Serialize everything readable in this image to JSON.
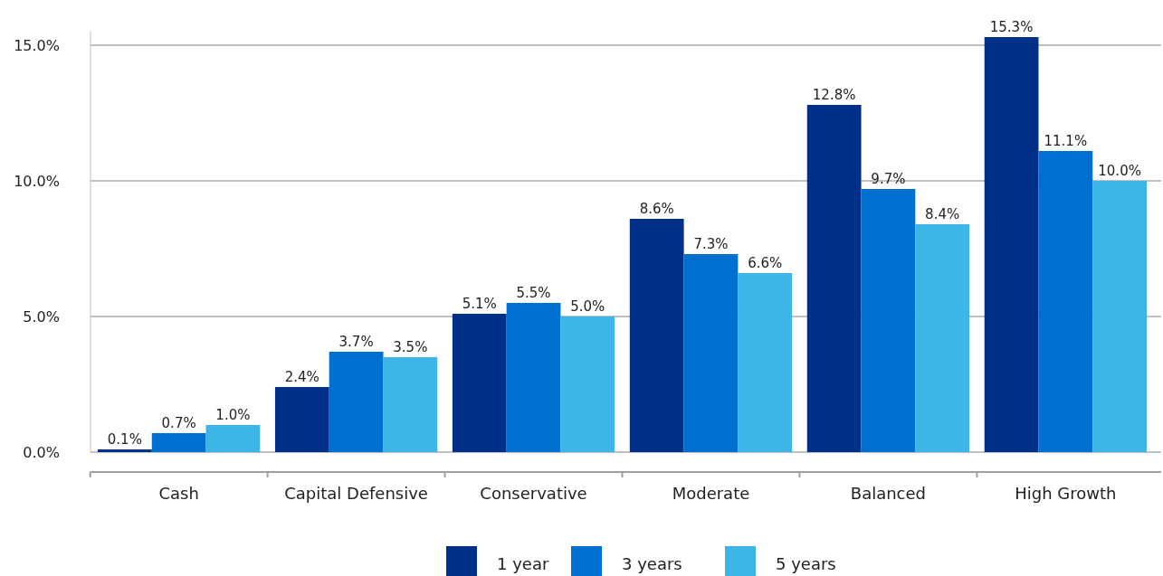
{
  "chart_data": {
    "type": "bar",
    "categories": [
      "Cash",
      "Capital Defensive",
      "Conservative",
      "Moderate",
      "Balanced",
      "High Growth"
    ],
    "series": [
      {
        "name": "1 year",
        "color": "#003087",
        "values": [
          0.1,
          2.4,
          5.1,
          8.6,
          12.8,
          15.3
        ],
        "value_labels": [
          "0.1%",
          "2.4%",
          "5.1%",
          "8.6%",
          "12.8%",
          "15.3%"
        ]
      },
      {
        "name": "3 years",
        "color": "#0070d0",
        "values": [
          0.7,
          3.7,
          5.5,
          7.3,
          9.7,
          11.1
        ],
        "value_labels": [
          "0.7%",
          "3.7%",
          "5.5%",
          "7.3%",
          "9.7%",
          "11.1%"
        ]
      },
      {
        "name": "5 years",
        "color": "#3db5e6",
        "values": [
          1.0,
          3.5,
          5.0,
          6.6,
          8.4,
          10.0
        ],
        "value_labels": [
          "1.0%",
          "3.5%",
          "5.0%",
          "6.6%",
          "8.4%",
          "10.0%"
        ]
      }
    ],
    "ylim": [
      0,
      15.5
    ],
    "yticks": [
      {
        "value": 0,
        "label": "0.0%"
      },
      {
        "value": 5,
        "label": "5.0%"
      },
      {
        "value": 10,
        "label": "10.0%"
      },
      {
        "value": 15,
        "label": "15.0%"
      }
    ],
    "grid": "y",
    "legend": "bottom"
  }
}
